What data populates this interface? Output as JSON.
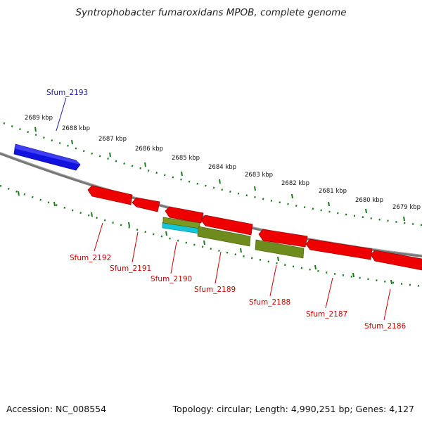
{
  "title": "Syntrophobacter fumaroxidans MPOB, complete genome",
  "footer": {
    "accession_text": "Accession: NC_008554",
    "summary_text": "Topology: circular; Length: 4,990,251 bp; Genes: 4,127"
  },
  "scale_labels": [
    "2689 kbp",
    "2688 kbp",
    "2687 kbp",
    "2686 kbp",
    "2685 kbp",
    "2684 kbp",
    "2683 kbp",
    "2682 kbp",
    "2681 kbp",
    "2680 kbp",
    "2679 kbp"
  ],
  "gene_labels": [
    {
      "name": "Sfum_2193",
      "color": "#1a1aaa"
    },
    {
      "name": "Sfum_2192",
      "color": "#cc0000"
    },
    {
      "name": "Sfum_2191",
      "color": "#cc0000"
    },
    {
      "name": "Sfum_2190",
      "color": "#cc0000"
    },
    {
      "name": "Sfum_2189",
      "color": "#cc0000"
    },
    {
      "name": "Sfum_2188",
      "color": "#cc0000"
    },
    {
      "name": "Sfum_2187",
      "color": "#cc0000"
    },
    {
      "name": "Sfum_2186",
      "color": "#cc0000"
    }
  ],
  "colors": {
    "backbone": "#7a7a7a",
    "dots": "#1a7a1a",
    "forward_gene": "#1212e0",
    "reverse_gene": "#ee0000",
    "rna_olive": "#6e8c1e",
    "rna_cyan": "#10c8d8"
  }
}
